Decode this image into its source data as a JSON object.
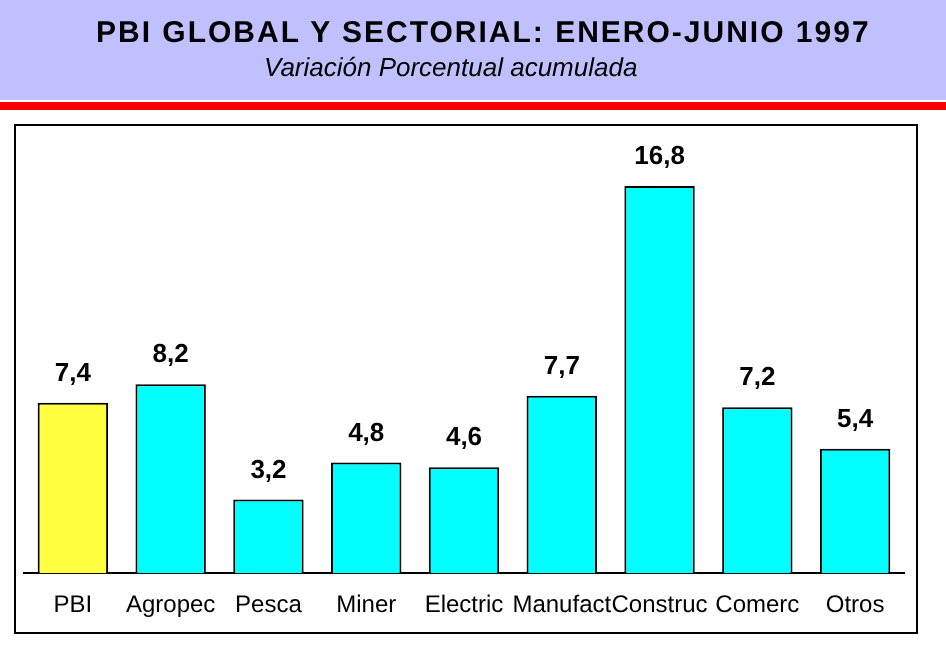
{
  "chart_data": {
    "type": "bar",
    "title": "PBI GLOBAL Y SECTORIAL: ENERO-JUNIO 1997",
    "subtitle": "Variación Porcentual acumulada",
    "categories": [
      "PBI",
      "Agropec",
      "Pesca",
      "Miner",
      "Electric",
      "Manufact",
      "Construc",
      "Comerc",
      "Otros"
    ],
    "values": [
      7.4,
      8.2,
      3.2,
      4.8,
      4.6,
      7.7,
      16.8,
      7.2,
      5.4
    ],
    "colors": [
      "#ffff40",
      "#00ffff",
      "#00ffff",
      "#00ffff",
      "#00ffff",
      "#00ffff",
      "#00ffff",
      "#00ffff",
      "#00ffff"
    ],
    "value_labels": [
      "7,4",
      "8,2",
      "3,2",
      "4,8",
      "4,6",
      "7,7",
      "16,8",
      "7,2",
      "5,4"
    ],
    "grid": false,
    "legend": false
  }
}
